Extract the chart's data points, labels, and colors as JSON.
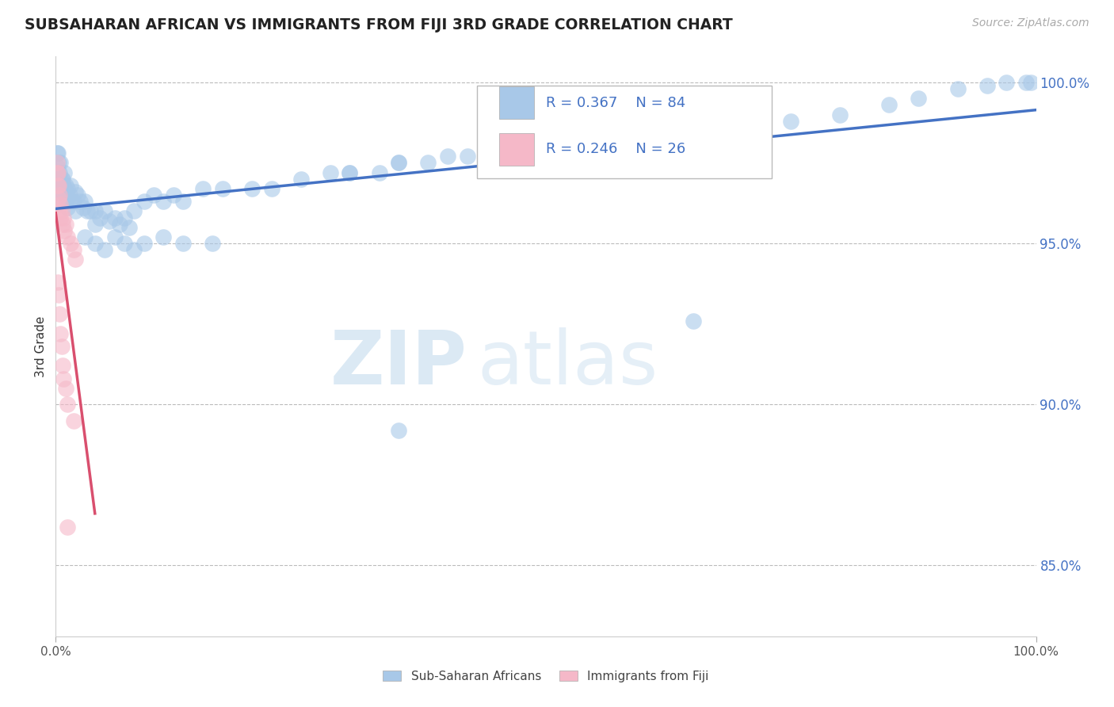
{
  "title": "SUBSAHARAN AFRICAN VS IMMIGRANTS FROM FIJI 3RD GRADE CORRELATION CHART",
  "source": "Source: ZipAtlas.com",
  "ylabel": "3rd Grade",
  "xlim": [
    0,
    1.0
  ],
  "ylim": [
    0.828,
    1.008
  ],
  "yticks": [
    0.85,
    0.9,
    0.95,
    1.0
  ],
  "yticklabels": [
    "85.0%",
    "90.0%",
    "95.0%",
    "100.0%"
  ],
  "blue_color": "#a8c8e8",
  "pink_color": "#f5b8c8",
  "trend_blue": "#4472c4",
  "trend_pink": "#d94f6e",
  "watermark_zip": "ZIP",
  "watermark_atlas": "atlas",
  "figsize": [
    14.06,
    8.92
  ],
  "dpi": 100,
  "blue_x": [
    0.001,
    0.001,
    0.002,
    0.002,
    0.003,
    0.003,
    0.004,
    0.004,
    0.005,
    0.005,
    0.006,
    0.006,
    0.007,
    0.007,
    0.008,
    0.008,
    0.009,
    0.009,
    0.01,
    0.01,
    0.012,
    0.012,
    0.014,
    0.015,
    0.016,
    0.018,
    0.02,
    0.02,
    0.022,
    0.025,
    0.028,
    0.03,
    0.032,
    0.035,
    0.04,
    0.04,
    0.045,
    0.05,
    0.055,
    0.06,
    0.065,
    0.07,
    0.075,
    0.08,
    0.09,
    0.1,
    0.11,
    0.12,
    0.13,
    0.15,
    0.17,
    0.2,
    0.22,
    0.25,
    0.28,
    0.3,
    0.33,
    0.35,
    0.38,
    0.42,
    0.03,
    0.04,
    0.05,
    0.06,
    0.07,
    0.08,
    0.09,
    0.11,
    0.13,
    0.16,
    0.3,
    0.35,
    0.4,
    0.5,
    0.65,
    0.75,
    0.8,
    0.85,
    0.88,
    0.92,
    0.95,
    0.97,
    0.99,
    0.995
  ],
  "blue_y": [
    0.978,
    0.974,
    0.978,
    0.972,
    0.975,
    0.97,
    0.972,
    0.967,
    0.975,
    0.97,
    0.97,
    0.966,
    0.97,
    0.965,
    0.968,
    0.963,
    0.972,
    0.967,
    0.968,
    0.963,
    0.967,
    0.961,
    0.965,
    0.968,
    0.963,
    0.963,
    0.966,
    0.96,
    0.965,
    0.963,
    0.961,
    0.963,
    0.96,
    0.96,
    0.96,
    0.956,
    0.958,
    0.96,
    0.957,
    0.958,
    0.956,
    0.958,
    0.955,
    0.96,
    0.963,
    0.965,
    0.963,
    0.965,
    0.963,
    0.967,
    0.967,
    0.967,
    0.967,
    0.97,
    0.972,
    0.972,
    0.972,
    0.975,
    0.975,
    0.977,
    0.952,
    0.95,
    0.948,
    0.952,
    0.95,
    0.948,
    0.95,
    0.952,
    0.95,
    0.95,
    0.972,
    0.975,
    0.977,
    0.98,
    0.985,
    0.988,
    0.99,
    0.993,
    0.995,
    0.998,
    0.999,
    1.0,
    1.0,
    1.0
  ],
  "pink_x": [
    0.001,
    0.001,
    0.002,
    0.002,
    0.003,
    0.003,
    0.004,
    0.004,
    0.005,
    0.005,
    0.006,
    0.007,
    0.008,
    0.009,
    0.01,
    0.012,
    0.015,
    0.018,
    0.02,
    0.002,
    0.003,
    0.004,
    0.005,
    0.006,
    0.007,
    0.008
  ],
  "pink_y": [
    0.975,
    0.972,
    0.972,
    0.968,
    0.968,
    0.964,
    0.965,
    0.96,
    0.962,
    0.958,
    0.96,
    0.956,
    0.958,
    0.954,
    0.956,
    0.952,
    0.95,
    0.948,
    0.945,
    0.938,
    0.934,
    0.928,
    0.922,
    0.918,
    0.912,
    0.908
  ]
}
